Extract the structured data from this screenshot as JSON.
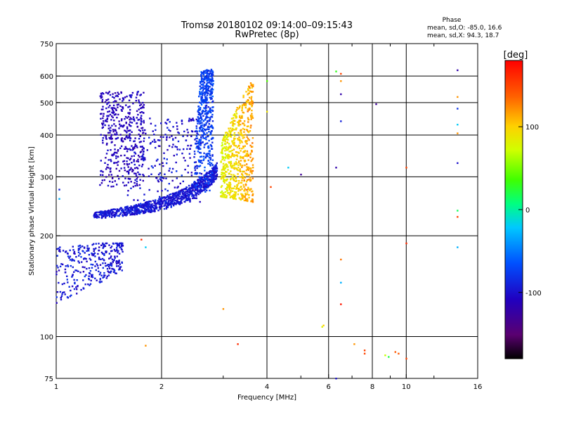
{
  "chart_data": {
    "type": "scatter",
    "title": "Tromsø 20180102 09:14:00–09:15:43",
    "subtitle": "RwPretec (8p)",
    "xlabel": "Frequency [MHz]",
    "ylabel": "Stationary phase Virtual Height [km]",
    "x_scale": "log",
    "y_scale": "log",
    "xlim": [
      1,
      16
    ],
    "ylim": [
      75,
      750
    ],
    "x_ticks": [
      1,
      2,
      4,
      6,
      8,
      10,
      16
    ],
    "x_tick_labels": [
      "1",
      "2",
      "4",
      "6",
      "8",
      "10",
      "16"
    ],
    "y_ticks": [
      75,
      100,
      200,
      300,
      400,
      500,
      600,
      750
    ],
    "y_tick_labels": [
      "75",
      "100",
      "200",
      "300",
      "400",
      "500",
      "600",
      "750"
    ],
    "x_minor_gridlines": [
      3,
      5,
      7,
      9,
      12
    ],
    "grid": true,
    "phase_stats": {
      "heading": "Phase",
      "line_o": "mean, sd,O: -85.0, 16.6",
      "line_x": "mean, sd,X:  94.3, 18.7"
    },
    "colorbar": {
      "label": "[deg]",
      "range": [
        -180,
        180
      ],
      "ticks": [
        100,
        0,
        -100
      ],
      "tick_labels": [
        "100",
        "0",
        "-100"
      ]
    },
    "traces": [
      {
        "note": "low E/F1 cluster",
        "f0": 1.0,
        "f1": 1.55,
        "h_low": 115,
        "h_high": 185,
        "phase_center": -95
      },
      {
        "note": "F-region O-mode lower trace",
        "f0": 1.3,
        "f1": 2.85,
        "h_low": 220,
        "h_high": 300,
        "phase_center": -95
      },
      {
        "note": "O-mode upper branch",
        "f0": 1.35,
        "f1": 1.75,
        "h_low": 300,
        "h_high": 520,
        "phase_center": -110
      },
      {
        "note": "O-mode cusp",
        "f0": 2.55,
        "f1": 2.95,
        "h_low": 290,
        "h_high": 630,
        "phase_center": -75
      },
      {
        "note": "X-mode trace",
        "f0": 2.95,
        "f1": 3.65,
        "h_low": 260,
        "h_high": 590,
        "phase_center": 94
      }
    ],
    "scattered_points": [
      {
        "x": 6.5,
        "y": 610,
        "phase": 150
      },
      {
        "x": 6.5,
        "y": 580,
        "phase": 120
      },
      {
        "x": 6.5,
        "y": 530,
        "phase": -120
      },
      {
        "x": 6.5,
        "y": 440,
        "phase": -90
      },
      {
        "x": 6.3,
        "y": 620,
        "phase": 30
      },
      {
        "x": 6.3,
        "y": 320,
        "phase": -120
      },
      {
        "x": 6.5,
        "y": 170,
        "phase": 130
      },
      {
        "x": 6.5,
        "y": 145,
        "phase": -30
      },
      {
        "x": 6.5,
        "y": 125,
        "phase": 170
      },
      {
        "x": 8.2,
        "y": 495,
        "phase": -130
      },
      {
        "x": 10.0,
        "y": 320,
        "phase": 150
      },
      {
        "x": 10.0,
        "y": 190,
        "phase": 160
      },
      {
        "x": 14.0,
        "y": 625,
        "phase": -120
      },
      {
        "x": 14.0,
        "y": 520,
        "phase": 120
      },
      {
        "x": 14.0,
        "y": 480,
        "phase": -80
      },
      {
        "x": 14.0,
        "y": 430,
        "phase": -20
      },
      {
        "x": 14.0,
        "y": 405,
        "phase": 120
      },
      {
        "x": 14.0,
        "y": 330,
        "phase": -100
      },
      {
        "x": 14.0,
        "y": 238,
        "phase": 15
      },
      {
        "x": 14.0,
        "y": 228,
        "phase": 150
      },
      {
        "x": 14.0,
        "y": 185,
        "phase": -30
      },
      {
        "x": 5.8,
        "y": 108,
        "phase": 100
      },
      {
        "x": 5.75,
        "y": 107,
        "phase": 80
      },
      {
        "x": 7.1,
        "y": 95,
        "phase": 120
      },
      {
        "x": 7.6,
        "y": 91,
        "phase": 150
      },
      {
        "x": 7.6,
        "y": 89,
        "phase": 150
      },
      {
        "x": 8.7,
        "y": 88,
        "phase": 70
      },
      {
        "x": 8.9,
        "y": 87,
        "phase": 20
      },
      {
        "x": 9.3,
        "y": 90,
        "phase": 140
      },
      {
        "x": 9.5,
        "y": 89,
        "phase": 140
      },
      {
        "x": 10.0,
        "y": 86,
        "phase": 150
      },
      {
        "x": 6.3,
        "y": 75,
        "phase": -100
      },
      {
        "x": 3.3,
        "y": 95,
        "phase": 160
      },
      {
        "x": 1.8,
        "y": 94,
        "phase": 120
      },
      {
        "x": 3.0,
        "y": 121,
        "phase": 120
      },
      {
        "x": 4.0,
        "y": 580,
        "phase": 40
      },
      {
        "x": 4.0,
        "y": 470,
        "phase": 90
      },
      {
        "x": 4.1,
        "y": 280,
        "phase": 150
      },
      {
        "x": 4.6,
        "y": 320,
        "phase": -20
      },
      {
        "x": 5.0,
        "y": 305,
        "phase": -130
      },
      {
        "x": 1.02,
        "y": 258,
        "phase": -30
      },
      {
        "x": 1.02,
        "y": 275,
        "phase": -90
      },
      {
        "x": 1.8,
        "y": 185,
        "phase": -20
      },
      {
        "x": 1.75,
        "y": 195,
        "phase": 160
      }
    ]
  }
}
